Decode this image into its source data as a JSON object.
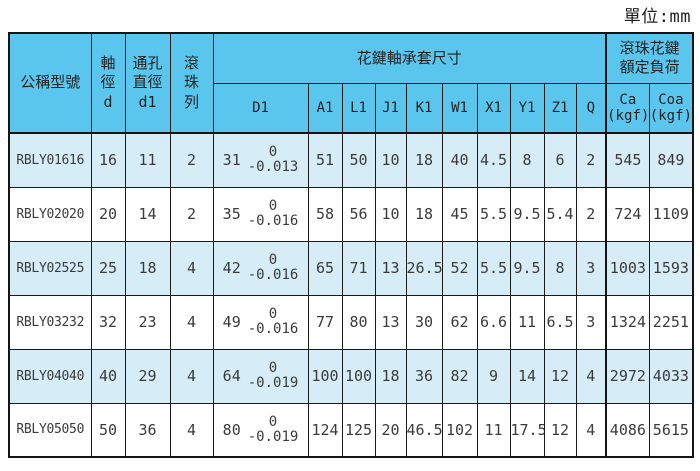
{
  "unit_label": "單位:mm",
  "table": {
    "header": {
      "model": "公稱型號",
      "shaft_dia": "軸\n徑\nd",
      "hole_dia": "通孔\n直徑\nd1",
      "ball_rows": "滾\n珠\n列",
      "spline_dims_span": "花鍵軸承套尺寸",
      "rated_load_span": "滾珠花鍵\n額定負荷",
      "sub_columns": [
        "D1",
        "A1",
        "L1",
        "J1",
        "K1",
        "W1",
        "X1",
        "Y1",
        "Z1",
        "Q"
      ],
      "ca_label": "Ca\n(kgf)",
      "coa_label": "Coa\n(kgf)"
    },
    "rows": [
      {
        "model": "RBLY01616",
        "shaft_d": "16",
        "hole_d1": "11",
        "ball_rows": "2",
        "D1": {
          "value": "31",
          "tol_upper": "0",
          "tol_lower": "-0.013"
        },
        "A1": "51",
        "L1": "50",
        "J1": "10",
        "K1": "18",
        "W1": "40",
        "X1": "4.5",
        "Y1": "8",
        "Z1": "6",
        "Q": "2",
        "Ca": "545",
        "Coa": "849"
      },
      {
        "model": "RBLY02020",
        "shaft_d": "20",
        "hole_d1": "14",
        "ball_rows": "2",
        "D1": {
          "value": "35",
          "tol_upper": "0",
          "tol_lower": "-0.016"
        },
        "A1": "58",
        "L1": "56",
        "J1": "10",
        "K1": "18",
        "W1": "45",
        "X1": "5.5",
        "Y1": "9.5",
        "Z1": "5.4",
        "Q": "2",
        "Ca": "724",
        "Coa": "1109"
      },
      {
        "model": "RBLY02525",
        "shaft_d": "25",
        "hole_d1": "18",
        "ball_rows": "4",
        "D1": {
          "value": "42",
          "tol_upper": "0",
          "tol_lower": "-0.016"
        },
        "A1": "65",
        "L1": "71",
        "J1": "13",
        "K1": "26.5",
        "W1": "52",
        "X1": "5.5",
        "Y1": "9.5",
        "Z1": "8",
        "Q": "3",
        "Ca": "1003",
        "Coa": "1593"
      },
      {
        "model": "RBLY03232",
        "shaft_d": "32",
        "hole_d1": "23",
        "ball_rows": "4",
        "D1": {
          "value": "49",
          "tol_upper": "0",
          "tol_lower": "-0.016"
        },
        "A1": "77",
        "L1": "80",
        "J1": "13",
        "K1": "30",
        "W1": "62",
        "X1": "6.6",
        "Y1": "11",
        "Z1": "6.5",
        "Q": "3",
        "Ca": "1324",
        "Coa": "2251"
      },
      {
        "model": "RBLY04040",
        "shaft_d": "40",
        "hole_d1": "29",
        "ball_rows": "4",
        "D1": {
          "value": "64",
          "tol_upper": "0",
          "tol_lower": "-0.019"
        },
        "A1": "100",
        "L1": "100",
        "J1": "18",
        "K1": "36",
        "W1": "82",
        "X1": "9",
        "Y1": "14",
        "Z1": "12",
        "Q": "4",
        "Ca": "2972",
        "Coa": "4033"
      },
      {
        "model": "RBLY05050",
        "shaft_d": "50",
        "hole_d1": "36",
        "ball_rows": "4",
        "D1": {
          "value": "80",
          "tol_upper": "0",
          "tol_lower": "-0.019"
        },
        "A1": "124",
        "L1": "125",
        "J1": "20",
        "K1": "46.5",
        "W1": "102",
        "X1": "11",
        "Y1": "17.5",
        "Z1": "12",
        "Q": "4",
        "Ca": "4086",
        "Coa": "5615"
      }
    ]
  },
  "colors": {
    "header_blue": "#5bc6ed",
    "row_light_blue": "#d6edf8",
    "row_white": "#ffffff",
    "border": "#1a1a1a",
    "text": "#3b3b3b"
  }
}
